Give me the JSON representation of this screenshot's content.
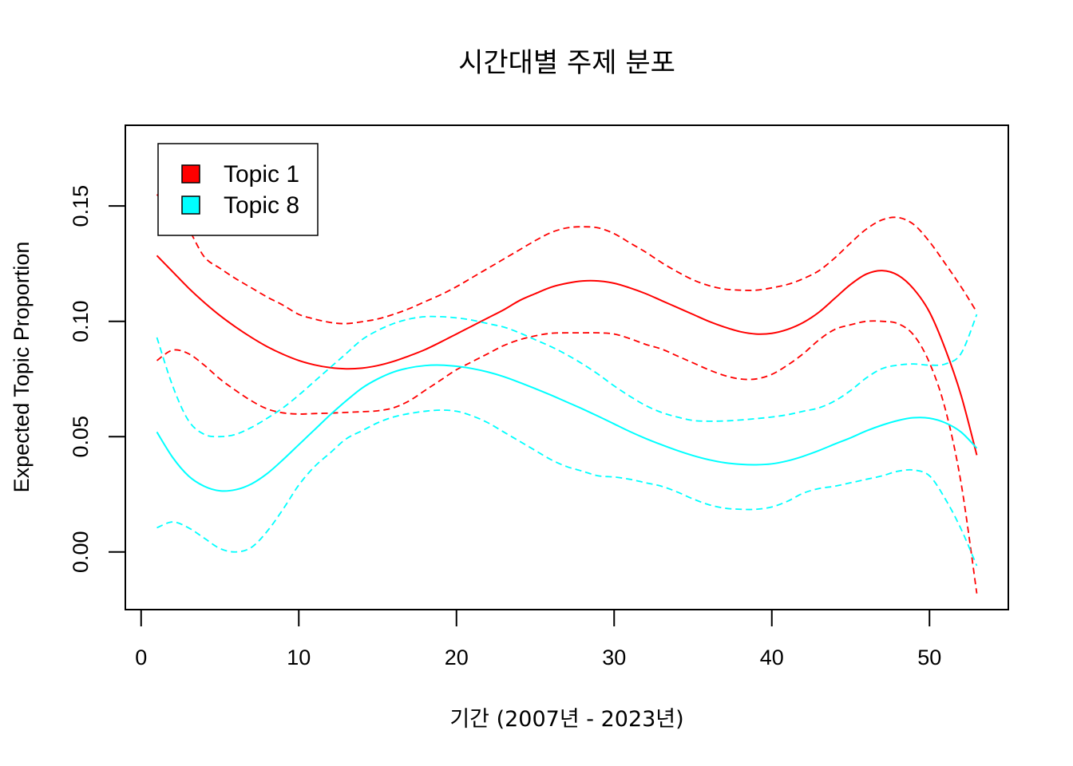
{
  "chart_data": {
    "type": "line",
    "title": "시간대별 주제 분포",
    "xlabel": "기간 (2007년 - 2023년)",
    "ylabel": "Expected Topic Proportion",
    "xlim": [
      -1,
      55
    ],
    "ylim": [
      -0.025,
      0.185
    ],
    "x_ticks": [
      0,
      10,
      20,
      30,
      40,
      50
    ],
    "x_tick_labels": [
      "0",
      "10",
      "20",
      "30",
      "40",
      "50"
    ],
    "y_ticks": [
      0.0,
      0.05,
      0.1,
      0.15
    ],
    "y_tick_labels": [
      "0.00",
      "0.05",
      "0.10",
      "0.15"
    ],
    "grid": false,
    "legend_position": "top-left",
    "series": [
      {
        "name": "Topic 1",
        "color": "#ff0000",
        "x": [
          1,
          2,
          3,
          4,
          5,
          6,
          7,
          8,
          9,
          10,
          11,
          12,
          13,
          14,
          15,
          16,
          17,
          18,
          19,
          20,
          21,
          22,
          23,
          24,
          25,
          26,
          27,
          28,
          29,
          30,
          31,
          32,
          33,
          34,
          35,
          36,
          37,
          38,
          39,
          40,
          41,
          42,
          43,
          44,
          45,
          46,
          47,
          48,
          49,
          50,
          51,
          52,
          53
        ],
        "mean": [
          0.1285,
          0.1215,
          0.1145,
          0.1082,
          0.1025,
          0.0975,
          0.093,
          0.089,
          0.0857,
          0.083,
          0.0811,
          0.0799,
          0.0794,
          0.0797,
          0.0808,
          0.0826,
          0.085,
          0.0877,
          0.091,
          0.0945,
          0.098,
          0.1015,
          0.105,
          0.109,
          0.112,
          0.1148,
          0.1165,
          0.1175,
          0.1175,
          0.1165,
          0.1145,
          0.112,
          0.109,
          0.106,
          0.103,
          0.1,
          0.0975,
          0.0955,
          0.0945,
          0.0948,
          0.0965,
          0.0995,
          0.104,
          0.11,
          0.116,
          0.1205,
          0.122,
          0.12,
          0.114,
          0.104,
          0.088,
          0.068,
          0.042
        ],
        "upper": [
          0.155,
          0.148,
          0.14,
          0.128,
          0.123,
          0.1185,
          0.1145,
          0.1105,
          0.107,
          0.103,
          0.101,
          0.0995,
          0.099,
          0.0998,
          0.101,
          0.103,
          0.1055,
          0.1085,
          0.1115,
          0.115,
          0.119,
          0.123,
          0.127,
          0.131,
          0.135,
          0.1385,
          0.1405,
          0.141,
          0.1405,
          0.138,
          0.134,
          0.13,
          0.1255,
          0.1215,
          0.118,
          0.1155,
          0.114,
          0.1135,
          0.1135,
          0.1145,
          0.116,
          0.1185,
          0.122,
          0.1275,
          0.134,
          0.14,
          0.144,
          0.145,
          0.142,
          0.1345,
          0.125,
          0.115,
          0.104
        ],
        "lower": [
          0.083,
          0.0875,
          0.086,
          0.081,
          0.075,
          0.07,
          0.0655,
          0.062,
          0.0603,
          0.0598,
          0.06,
          0.0602,
          0.0605,
          0.0608,
          0.0612,
          0.0625,
          0.0655,
          0.07,
          0.0745,
          0.079,
          0.0825,
          0.086,
          0.0895,
          0.092,
          0.0937,
          0.0948,
          0.095,
          0.095,
          0.095,
          0.0945,
          0.0925,
          0.09,
          0.088,
          0.085,
          0.082,
          0.079,
          0.0765,
          0.075,
          0.075,
          0.077,
          0.081,
          0.086,
          0.092,
          0.0965,
          0.0985,
          0.1,
          0.1,
          0.099,
          0.094,
          0.082,
          0.062,
          0.03,
          -0.018
        ]
      },
      {
        "name": "Topic 8",
        "color": "#00ffff",
        "x": [
          1,
          2,
          3,
          4,
          5,
          6,
          7,
          8,
          9,
          10,
          11,
          12,
          13,
          14,
          15,
          16,
          17,
          18,
          19,
          20,
          21,
          22,
          23,
          24,
          25,
          26,
          27,
          28,
          29,
          30,
          31,
          32,
          33,
          34,
          35,
          36,
          37,
          38,
          39,
          40,
          41,
          42,
          43,
          44,
          45,
          46,
          47,
          48,
          49,
          50,
          51,
          52,
          53
        ],
        "mean": [
          0.052,
          0.041,
          0.033,
          0.0285,
          0.0265,
          0.027,
          0.0295,
          0.034,
          0.04,
          0.0465,
          0.053,
          0.0595,
          0.0655,
          0.071,
          0.075,
          0.078,
          0.0798,
          0.0808,
          0.081,
          0.0805,
          0.0795,
          0.078,
          0.076,
          0.0735,
          0.0708,
          0.068,
          0.065,
          0.062,
          0.0588,
          0.0555,
          0.0522,
          0.0492,
          0.0465,
          0.044,
          0.0418,
          0.04,
          0.0387,
          0.038,
          0.0378,
          0.0382,
          0.0395,
          0.0415,
          0.044,
          0.0468,
          0.0495,
          0.0525,
          0.055,
          0.057,
          0.0582,
          0.058,
          0.056,
          0.052,
          0.045
        ],
        "upper": [
          0.093,
          0.072,
          0.057,
          0.051,
          0.05,
          0.051,
          0.054,
          0.058,
          0.0625,
          0.068,
          0.074,
          0.08,
          0.086,
          0.092,
          0.096,
          0.099,
          0.101,
          0.102,
          0.102,
          0.1015,
          0.1005,
          0.099,
          0.0975,
          0.095,
          0.092,
          0.089,
          0.0855,
          0.0815,
          0.077,
          0.072,
          0.0675,
          0.0635,
          0.0605,
          0.0585,
          0.057,
          0.0567,
          0.0568,
          0.0572,
          0.0578,
          0.0585,
          0.0595,
          0.061,
          0.0625,
          0.0655,
          0.07,
          0.0755,
          0.0795,
          0.081,
          0.0815,
          0.081,
          0.0815,
          0.086,
          0.103
        ],
        "lower": [
          0.0105,
          0.013,
          0.0105,
          0.006,
          0.0015,
          0.0,
          0.002,
          0.009,
          0.0185,
          0.029,
          0.037,
          0.043,
          0.049,
          0.0525,
          0.056,
          0.0585,
          0.06,
          0.061,
          0.0615,
          0.061,
          0.059,
          0.056,
          0.052,
          0.048,
          0.044,
          0.04,
          0.037,
          0.035,
          0.033,
          0.0325,
          0.0315,
          0.03,
          0.0285,
          0.026,
          0.023,
          0.0205,
          0.019,
          0.0185,
          0.0185,
          0.0195,
          0.022,
          0.0255,
          0.0275,
          0.0285,
          0.03,
          0.0315,
          0.033,
          0.035,
          0.0355,
          0.033,
          0.023,
          0.01,
          -0.006
        ]
      }
    ]
  }
}
